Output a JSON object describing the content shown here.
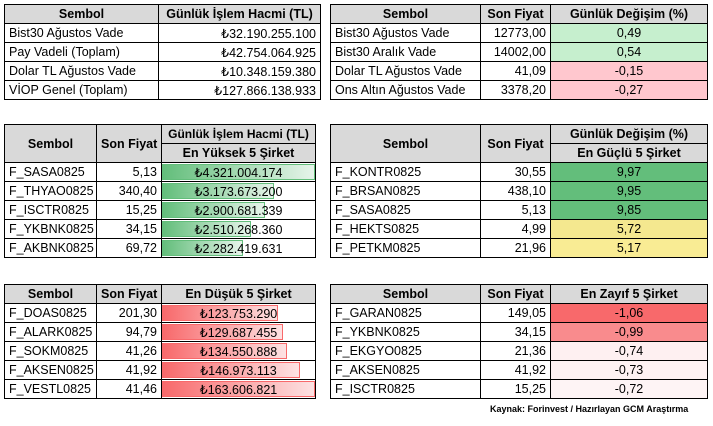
{
  "top_left": {
    "headers": [
      "Sembol",
      "Günlük İşlem Hacmi (TL)"
    ],
    "rows": [
      [
        "Bist30 Ağustos Vade",
        "₺32.190.255.100"
      ],
      [
        "Pay Vadeli (Toplam)",
        "₺42.754.064.925"
      ],
      [
        "Dolar TL Ağustos Vade",
        "₺10.348.159.380"
      ],
      [
        "VİOP Genel (Toplam)",
        "₺127.866.138.933"
      ]
    ]
  },
  "top_right": {
    "headers": [
      "Sembol",
      "Son Fiyat",
      "Günlük Değişim (%)"
    ],
    "rows": [
      [
        "Bist30 Ağustos Vade",
        "12773,00",
        "0,49"
      ],
      [
        "Bist30 Aralık Vade",
        "14002,00",
        "0,54"
      ],
      [
        "Dolar TL Ağustos Vade",
        "41,09",
        "-0,15"
      ],
      [
        "Ons Altın Ağustos Vade",
        "3378,20",
        "-0,27"
      ]
    ],
    "colors": [
      "#c6efce",
      "#c6efce",
      "#ffc7ce",
      "#ffc7ce"
    ]
  },
  "volume_top": {
    "headers": [
      "Sembol",
      "Son Fiyat",
      "Günlük İşlem Hacmi (TL)"
    ],
    "subheader": "En Yüksek 5 Şirket",
    "rows": [
      [
        "F_SASA0825",
        "5,13",
        "₺4.321.004.174"
      ],
      [
        "F_THYAO0825",
        "340,40",
        "₺3.173.673.200"
      ],
      [
        "F_ISCTR0825",
        "15,25",
        "₺2.900.681.339"
      ],
      [
        "F_YKBNK0825",
        "34,15",
        "₺2.510.268.360"
      ],
      [
        "F_AKBNK0825",
        "69,72",
        "₺2.282.419.631"
      ]
    ],
    "bar_fraction": [
      1.0,
      0.73,
      0.67,
      0.58,
      0.53
    ]
  },
  "gainers": {
    "headers": [
      "Sembol",
      "Son Fiyat",
      "Günlük Değişim (%)"
    ],
    "subheader": "En Güçlü 5 Şirket",
    "rows": [
      [
        "F_KONTR0825",
        "30,55",
        "9,97"
      ],
      [
        "F_BRSAN0825",
        "438,10",
        "9,95"
      ],
      [
        "F_SASA0825",
        "5,13",
        "9,85"
      ],
      [
        "F_HEKTS0825",
        "4,99",
        "5,72"
      ],
      [
        "F_PETKM0825",
        "21,96",
        "5,17"
      ]
    ],
    "colors": [
      "#63be7b",
      "#63be7b",
      "#63be7b",
      "#f4e88f",
      "#f9ec94"
    ]
  },
  "volume_low": {
    "headers": [
      "Sembol",
      "Son Fiyat",
      "En Düşük 5 Şirket"
    ],
    "rows": [
      [
        "F_DOAS0825",
        "201,30",
        "₺123.753.290"
      ],
      [
        "F_ALARK0825",
        "94,79",
        "₺129.687.455"
      ],
      [
        "F_SOKM0825",
        "41,26",
        "₺134.550.888"
      ],
      [
        "F_AKSEN0825",
        "41,92",
        "₺146.973.113"
      ],
      [
        "F_VESTL0825",
        "41,46",
        "₺163.606.821"
      ]
    ],
    "bar_fraction": [
      0.76,
      0.79,
      0.82,
      0.9,
      1.0
    ]
  },
  "losers": {
    "headers": [
      "Sembol",
      "Son Fiyat",
      "En Zayıf 5 Şirket"
    ],
    "rows": [
      [
        "F_GARAN0825",
        "149,05",
        "-1,06"
      ],
      [
        "F_YKBNK0825",
        "34,15",
        "-0,99"
      ],
      [
        "F_EKGYO0825",
        "21,36",
        "-0,74"
      ],
      [
        "F_AKSEN0825",
        "41,92",
        "-0,73"
      ],
      [
        "F_ISCTR0825",
        "15,25",
        "-0,72"
      ]
    ],
    "colors": [
      "#f8696b",
      "#f98b8d",
      "#fef0f1",
      "#fef2f3",
      "#fef4f5"
    ]
  },
  "footer": "Kaynak: Forinvest / Hazırlayan GCM Araştırma"
}
